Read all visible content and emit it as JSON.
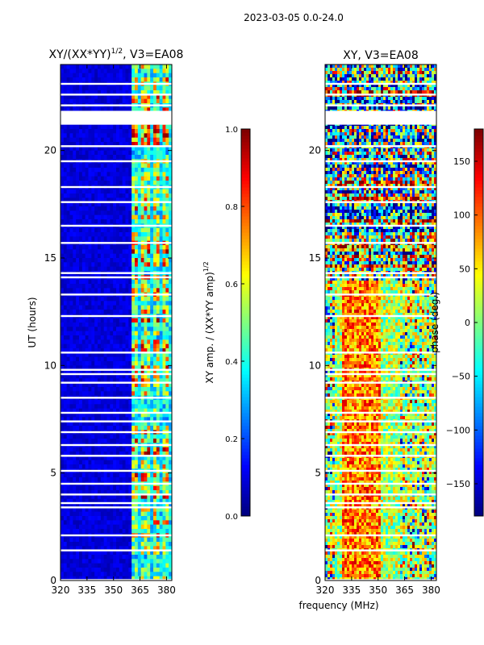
{
  "figure": {
    "suptitle": "2023-03-05 0.0-24.0"
  },
  "chart_data": [
    {
      "type": "heatmap",
      "title": "XY/(XX*YY)",
      "title_exponent": "1/2",
      "title_suffix": ", V3=EA08",
      "xlabel": "",
      "ylabel": "UT (hours)",
      "xlim": [
        320,
        383
      ],
      "ylim": [
        0,
        24
      ],
      "xticks": [
        320,
        335,
        350,
        365,
        380
      ],
      "yticks": [
        0,
        5,
        10,
        15,
        20
      ],
      "colorbar": {
        "label": "XY amp. / (XX*YY amp)",
        "label_exponent": "1/2",
        "range": [
          0.0,
          1.0
        ],
        "ticks": [
          "0.0",
          "0.2",
          "0.4",
          "0.6",
          "0.8",
          "1.0"
        ],
        "colormap": "jet"
      },
      "gaps_hours": [
        0.02,
        1.4,
        2.1,
        3.4,
        3.6,
        4.0,
        4.5,
        5.1,
        5.8,
        6.3,
        6.9,
        7.4,
        7.8,
        8.5,
        9.2,
        9.6,
        9.8,
        10.6,
        12.3,
        13.3,
        14.1,
        14.3,
        15.7,
        16.5,
        17.6,
        18.3,
        19.5,
        20.2,
        21.3,
        21.5,
        21.8,
        22.1,
        22.6,
        23.1
      ],
      "band_edges_mhz": [
        360,
        364,
        366,
        370,
        372,
        376,
        378,
        381
      ]
    },
    {
      "type": "heatmap",
      "title": "XY, V3=EA08",
      "xlabel": "frequency (MHz)",
      "ylabel": "",
      "xlim": [
        320,
        383
      ],
      "ylim": [
        0,
        24
      ],
      "xticks": [
        320,
        335,
        350,
        365,
        380
      ],
      "yticks": [
        0,
        5,
        10,
        15,
        20
      ],
      "colorbar": {
        "label": "phase (deg.)",
        "range": [
          -180,
          180
        ],
        "ticks": [
          "150",
          "100",
          "50",
          "0",
          "−50",
          "−100",
          "−150"
        ],
        "tick_values": [
          150,
          100,
          50,
          0,
          -50,
          -100,
          -150
        ],
        "colormap": "jet"
      }
    }
  ],
  "colors": {
    "background": "#ffffff",
    "gap": "#ffffff",
    "frame": "#000000"
  }
}
